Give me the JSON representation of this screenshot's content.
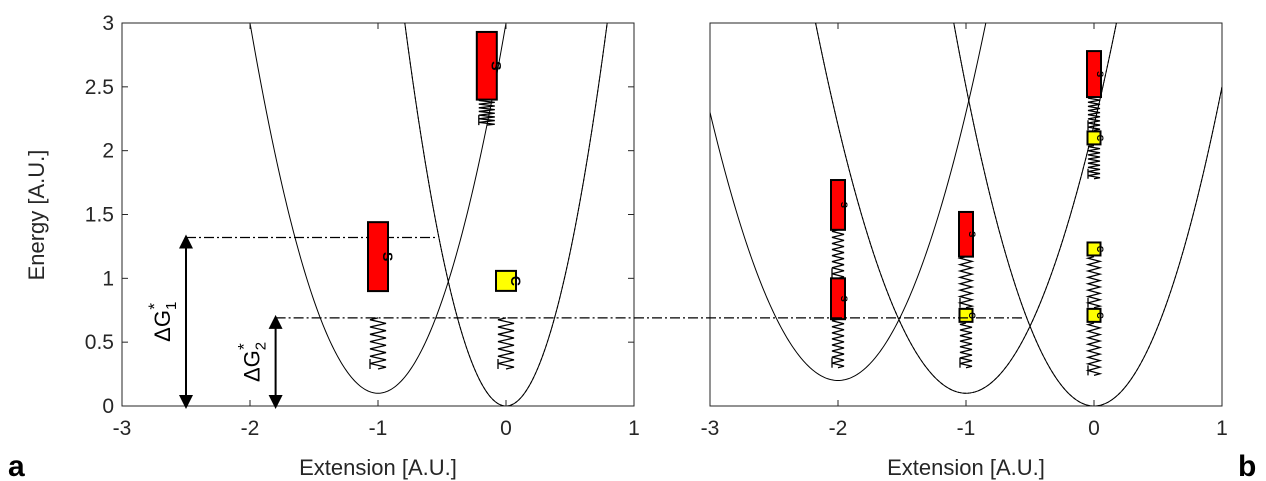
{
  "chart_data": [
    {
      "panel": "a",
      "type": "line",
      "xlabel": "Extension [A.U.]",
      "ylabel": "Energy [A.U.]",
      "xlim": [
        -3,
        1
      ],
      "ylim": [
        0,
        3
      ],
      "xticks": [
        "-3",
        "-2",
        "-1",
        "0",
        "1"
      ],
      "yticks": [
        "0",
        "0.5",
        "1",
        "1.5",
        "2",
        "2.5",
        "3"
      ],
      "series": [
        {
          "style": "solid",
          "vertex_x": -1,
          "vertex_y": 0.1,
          "curvature": 2.9
        },
        {
          "style": "solid",
          "vertex_x": 0,
          "vertex_y": 0,
          "curvature": 4.8
        },
        {
          "style": "dashed",
          "vertex_x": 0,
          "vertex_y": 0,
          "curvature": 4.8
        }
      ],
      "guides": [
        {
          "y": 1.32,
          "x_from": -2.5,
          "x_to": -0.55
        },
        {
          "y": 0.69,
          "x_from": -1.8,
          "x_to": -0.55
        }
      ],
      "energy_barriers": [
        {
          "label_main": "ΔG",
          "sub": "1",
          "sup": "*",
          "x": -2.5,
          "from": 0,
          "to": 1.32
        },
        {
          "label_main": "ΔG",
          "sub": "2",
          "sup": "*",
          "x": -1.8,
          "from": 0,
          "to": 0.69
        }
      ],
      "glyphs": [
        {
          "kind": "spring",
          "x": -1,
          "y0": 0.29,
          "y1": 0.69
        },
        {
          "kind": "block",
          "letter": "S",
          "x": -1,
          "y0": 0.9,
          "y1": 1.44,
          "color": "#ff0000"
        },
        {
          "kind": "spring",
          "x": 0,
          "y0": 0.29,
          "y1": 0.69
        },
        {
          "kind": "box",
          "letter": "C",
          "x": 0,
          "y": 0.98,
          "color": "#ffff00"
        },
        {
          "kind": "spring",
          "x": -0.15,
          "y0": 2.2,
          "y1": 2.4
        },
        {
          "kind": "block",
          "letter": "S",
          "x": -0.15,
          "y0": 2.4,
          "y1": 2.93,
          "color": "#ff0000"
        }
      ]
    },
    {
      "panel": "b",
      "type": "line",
      "xlabel": "Extension [A.U.]",
      "ylabel": "",
      "xlim": [
        -3,
        1
      ],
      "ylim": [
        0,
        3
      ],
      "xticks": [
        "-3",
        "-2",
        "-1",
        "0",
        "1"
      ],
      "yticks": [],
      "series": [
        {
          "style": "solid",
          "vertex_x": -2,
          "vertex_y": 0.2,
          "curvature": 2.1
        },
        {
          "style": "solid",
          "vertex_x": -1,
          "vertex_y": 0.1,
          "curvature": 2.1
        },
        {
          "style": "solid",
          "vertex_x": 0,
          "vertex_y": 0,
          "curvature": 2.5
        },
        {
          "style": "dashed",
          "vertex_x": -1,
          "vertex_y": 0.1,
          "curvature": 2.1
        },
        {
          "style": "dashed",
          "vertex_x": 0,
          "vertex_y": 0,
          "curvature": 2.5
        }
      ],
      "guides": [
        {
          "y": 0.69,
          "x_from": -3,
          "x_to": -0.55
        }
      ],
      "glyphs": [
        {
          "kind": "spring",
          "x": -2,
          "y0": 0.3,
          "y1": 0.68
        },
        {
          "kind": "block",
          "letter": "S",
          "x": -2,
          "y0": 0.68,
          "y1": 1.0,
          "color": "#ff0000"
        },
        {
          "kind": "spring",
          "x": -2,
          "y0": 1.0,
          "y1": 1.38
        },
        {
          "kind": "block",
          "letter": "S",
          "x": -2,
          "y0": 1.38,
          "y1": 1.77,
          "color": "#ff0000"
        },
        {
          "kind": "spring",
          "x": -1,
          "y0": 0.3,
          "y1": 0.65
        },
        {
          "kind": "box",
          "letter": "C",
          "x": -1,
          "y": 0.71,
          "color": "#ffff00"
        },
        {
          "kind": "spring",
          "x": -1,
          "y0": 0.77,
          "y1": 1.17
        },
        {
          "kind": "block",
          "letter": "S",
          "x": -1,
          "y0": 1.17,
          "y1": 1.52,
          "color": "#ff0000"
        },
        {
          "kind": "spring",
          "x": 0,
          "y0": 0.24,
          "y1": 0.65
        },
        {
          "kind": "box",
          "letter": "C",
          "x": 0,
          "y": 0.71,
          "color": "#ffff00"
        },
        {
          "kind": "spring",
          "x": 0,
          "y0": 0.77,
          "y1": 1.17
        },
        {
          "kind": "box",
          "letter": "C",
          "x": 0,
          "y": 1.23,
          "color": "#ffff00"
        },
        {
          "kind": "spring",
          "x": 0,
          "y0": 1.78,
          "y1": 2.04
        },
        {
          "kind": "box",
          "letter": "C",
          "x": 0,
          "y": 2.1,
          "color": "#ffff00"
        },
        {
          "kind": "spring",
          "x": 0,
          "y0": 2.16,
          "y1": 2.42
        },
        {
          "kind": "block",
          "letter": "S",
          "x": 0,
          "y0": 2.42,
          "y1": 2.78,
          "color": "#ff0000"
        }
      ]
    }
  ],
  "labels": {
    "panel_a": "a",
    "panel_b": "b"
  }
}
